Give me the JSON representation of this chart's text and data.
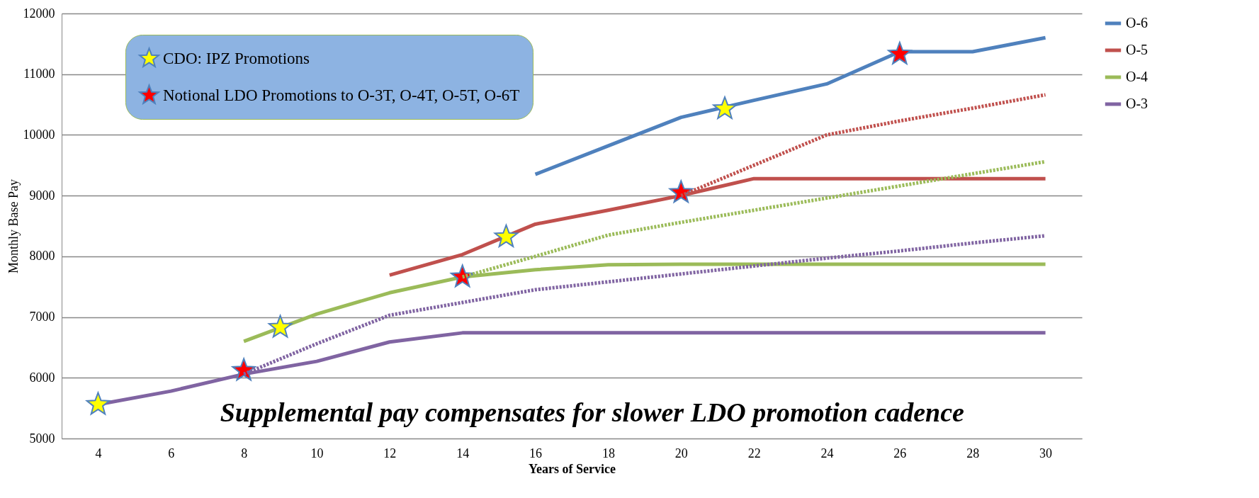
{
  "chart_data": {
    "type": "line",
    "xlabel": "Years of Service",
    "ylabel": "Monthly Base Pay",
    "xlim": [
      3,
      31
    ],
    "xticks": [
      4,
      6,
      8,
      10,
      12,
      14,
      16,
      18,
      20,
      22,
      24,
      26,
      28,
      30
    ],
    "ylim": [
      5000,
      12000
    ],
    "yticks": [
      5000,
      6000,
      7000,
      8000,
      9000,
      10000,
      11000,
      12000
    ],
    "grid": "y",
    "legend": "right",
    "line_style": "solid",
    "series": [
      {
        "name": "O-6",
        "color": "#4f81bd",
        "x": [
          16,
          18,
          20,
          22,
          24,
          26,
          28,
          30
        ],
        "values": [
          9350,
          9820,
          10290,
          10570,
          10840,
          11370,
          11370,
          11600
        ]
      },
      {
        "name": "O-5",
        "color": "#c0504d",
        "x": [
          12,
          14,
          16,
          18,
          20,
          22,
          24,
          26,
          28,
          30
        ],
        "values": [
          7690,
          8030,
          8530,
          8760,
          9000,
          9280,
          9280,
          9280,
          9280,
          9280
        ]
      },
      {
        "name": "O-4",
        "color": "#9bbb59",
        "x": [
          8,
          10,
          12,
          14,
          16,
          18,
          20,
          22,
          24,
          26,
          28,
          30
        ],
        "values": [
          6600,
          7050,
          7400,
          7660,
          7780,
          7860,
          7870,
          7870,
          7870,
          7870,
          7870,
          7870
        ]
      },
      {
        "name": "O-3",
        "color": "#8064a2",
        "x": [
          4,
          6,
          8,
          10,
          12,
          14,
          16,
          18,
          20,
          22,
          24,
          26,
          28,
          30
        ],
        "values": [
          5560,
          5780,
          6060,
          6270,
          6590,
          6740,
          6740,
          6740,
          6740,
          6740,
          6740,
          6740,
          6740,
          6740
        ]
      },
      {
        "color": "#c0504d",
        "line_style": "dotted",
        "x": [
          20,
          22,
          24,
          26,
          28,
          30
        ],
        "values": [
          9000,
          9500,
          10000,
          10230,
          10440,
          10660
        ]
      },
      {
        "color": "#9bbb59",
        "line_style": "dotted",
        "x": [
          14,
          16,
          18,
          20,
          22,
          24,
          26,
          28,
          30
        ],
        "values": [
          7660,
          8000,
          8350,
          8560,
          8760,
          8960,
          9160,
          9360,
          9560
        ]
      },
      {
        "color": "#8064a2",
        "line_style": "dotted",
        "x": [
          8,
          10,
          12,
          14,
          16,
          18,
          20,
          22,
          24,
          26,
          28,
          30
        ],
        "values": [
          6060,
          6560,
          7030,
          7240,
          7450,
          7580,
          7710,
          7840,
          7970,
          8090,
          8220,
          8340
        ]
      },
      {
        "type": "scatter",
        "marker": "star",
        "name": "CDO:  IPZ Promotions",
        "color": "#ffff00",
        "x": [
          4,
          9,
          15.2,
          21.2
        ],
        "values": [
          5560,
          6830,
          8320,
          10430
        ]
      },
      {
        "type": "scatter",
        "marker": "star",
        "name": "Notional LDO Promotions to O-3T, O-4T, O-5T, O-6T",
        "color": "#ff0000",
        "x": [
          8,
          14,
          20,
          26
        ],
        "values": [
          6120,
          7660,
          9050,
          11330
        ]
      }
    ],
    "annotations": [
      "Supplemental pay compensates for slower LDO promotion cadence"
    ]
  }
}
